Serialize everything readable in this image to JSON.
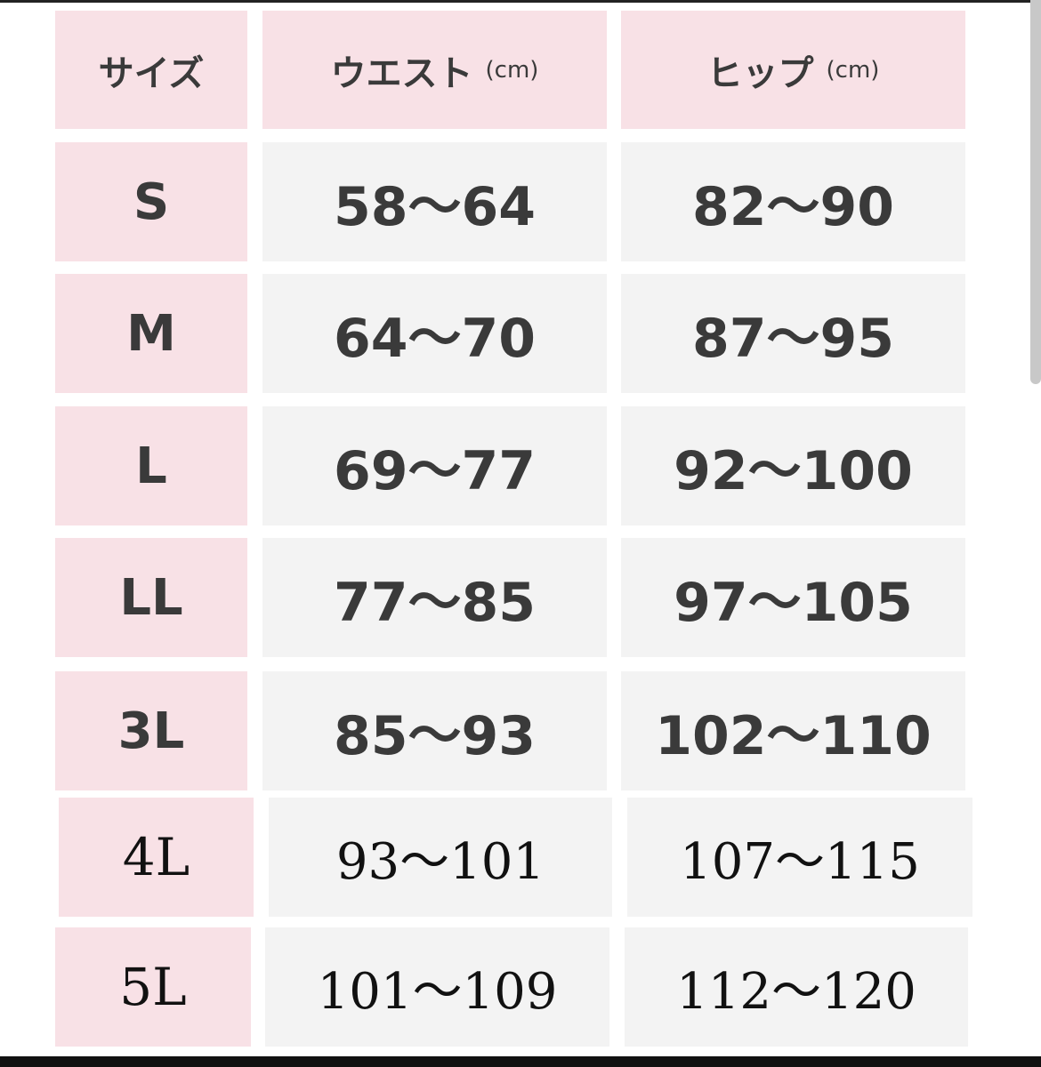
{
  "header": {
    "size": "サイズ",
    "waist": "ウエスト",
    "hip": "ヒップ",
    "unit": "(cm)"
  },
  "rows": [
    {
      "size": "S",
      "waist": "58〜64",
      "hip": "82〜90"
    },
    {
      "size": "M",
      "waist": "64〜70",
      "hip": "87〜95"
    },
    {
      "size": "L",
      "waist": "69〜77",
      "hip": "92〜100"
    },
    {
      "size": "LL",
      "waist": "77〜85",
      "hip": "97〜105"
    },
    {
      "size": "3L",
      "waist": "85〜93",
      "hip": "102〜110"
    },
    {
      "size": "4L",
      "waist": "93〜101",
      "hip": "107〜115"
    },
    {
      "size": "5L",
      "waist": "101〜109",
      "hip": "112〜120"
    }
  ],
  "colors": {
    "header_bg": "#f8e1e6",
    "size_bg": "#f8e1e6",
    "value_bg": "#f3f3f3",
    "text": "#3a3a3a"
  }
}
